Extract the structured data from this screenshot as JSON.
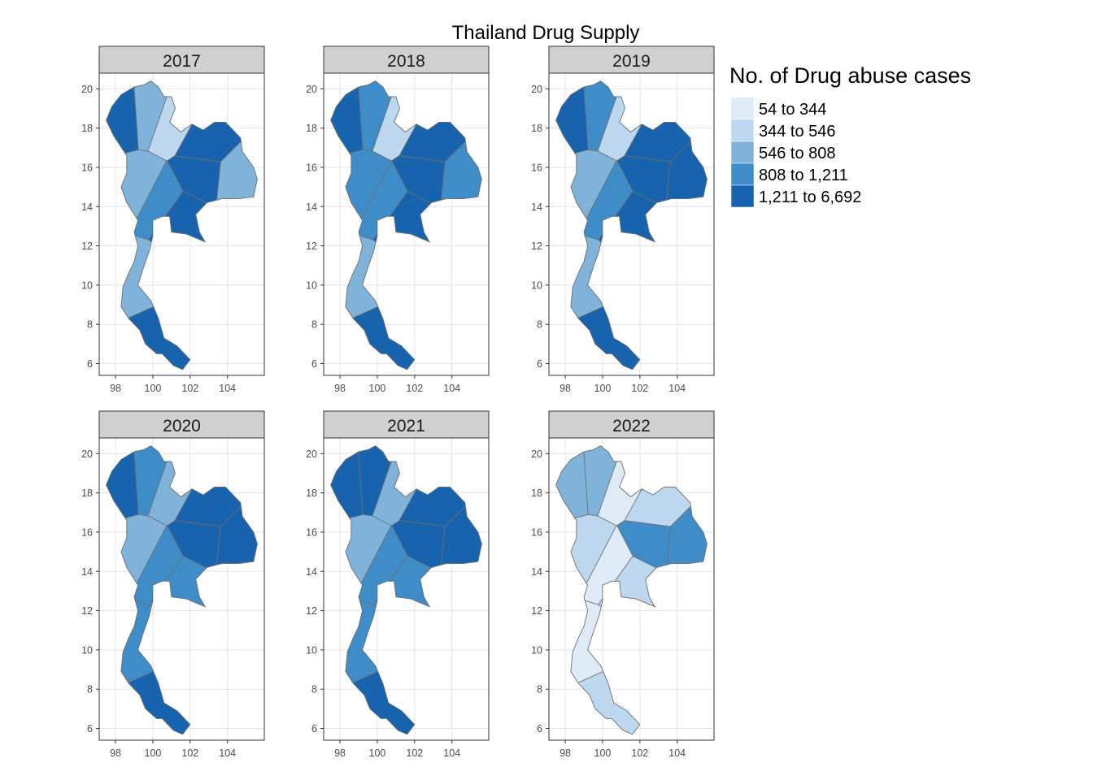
{
  "chart_data": {
    "type": "choropleth-map",
    "title": "Thailand Drug Supply",
    "facets": [
      "2017",
      "2018",
      "2019",
      "2020",
      "2021",
      "2022"
    ],
    "x_ticks": [
      "98",
      "100",
      "102",
      "104"
    ],
    "y_ticks": [
      "20",
      "18",
      "16",
      "14",
      "12",
      "10",
      "8",
      "6"
    ],
    "xlim": [
      97.3,
      105.8
    ],
    "ylim": [
      5.4,
      20.8
    ],
    "legend": {
      "title": "No. of Drug abuse cases",
      "bins": [
        {
          "label": "54 to 344",
          "color": "#deebf7"
        },
        {
          "label": "344 to 546",
          "color": "#bdd7ee"
        },
        {
          "label": "546 to 808",
          "color": "#7fb3d9"
        },
        {
          "label": "808 to 1,211",
          "color": "#3f8dc8"
        },
        {
          "label": "1,211 to 6,692",
          "color": "#1763ad"
        }
      ]
    },
    "panel_levels": {
      "2017": {
        "north_west": 4,
        "north": 2,
        "north_east": 1,
        "northeast_north": 4,
        "northeast_center": 4,
        "northeast_east": 2,
        "central_west": 2,
        "central": 3,
        "central_east": 4,
        "south_upper": 2,
        "south_lower": 4
      },
      "2018": {
        "north_west": 4,
        "north": 3,
        "north_east": 1,
        "northeast_north": 4,
        "northeast_center": 4,
        "northeast_east": 3,
        "central_west": 3,
        "central": 3,
        "central_east": 4,
        "south_upper": 2,
        "south_lower": 4
      },
      "2019": {
        "north_west": 4,
        "north": 3,
        "north_east": 1,
        "northeast_north": 4,
        "northeast_center": 4,
        "northeast_east": 4,
        "central_west": 2,
        "central": 3,
        "central_east": 4,
        "south_upper": 2,
        "south_lower": 4
      },
      "2020": {
        "north_west": 4,
        "north": 3,
        "north_east": 2,
        "northeast_north": 4,
        "northeast_center": 4,
        "northeast_east": 4,
        "central_west": 2,
        "central": 3,
        "central_east": 3,
        "south_upper": 3,
        "south_lower": 4
      },
      "2021": {
        "north_west": 4,
        "north": 4,
        "north_east": 2,
        "northeast_north": 4,
        "northeast_center": 4,
        "northeast_east": 4,
        "central_west": 2,
        "central": 3,
        "central_east": 3,
        "south_upper": 3,
        "south_lower": 4
      },
      "2022": {
        "north_west": 2,
        "north": 2,
        "north_east": 0,
        "northeast_north": 1,
        "northeast_center": 3,
        "northeast_east": 3,
        "central_west": 1,
        "central": 0,
        "central_east": 1,
        "south_upper": 0,
        "south_lower": 1
      }
    }
  }
}
